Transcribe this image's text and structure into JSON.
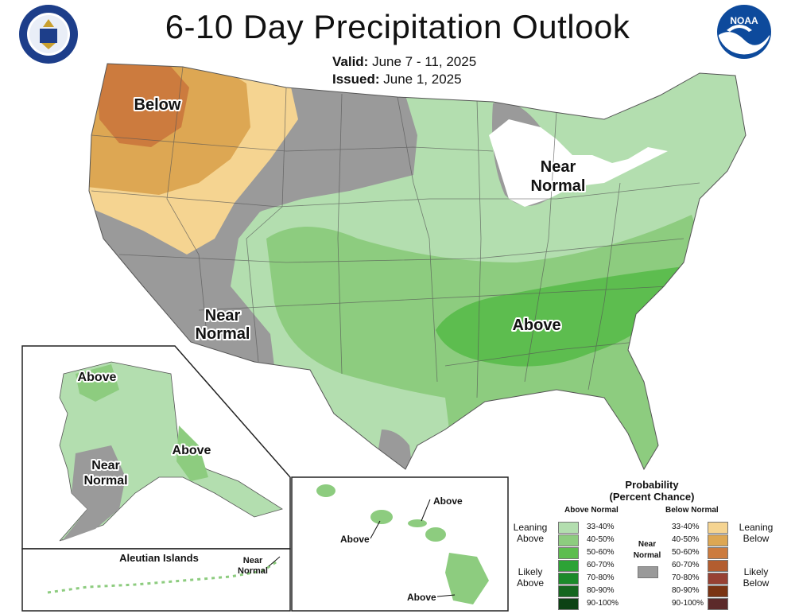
{
  "header": {
    "title": "6-10 Day Precipitation Outlook",
    "valid_label": "Valid:",
    "valid_dates": "June 7 - 11, 2025",
    "issued_label": "Issued:",
    "issued_date": "June 1, 2025"
  },
  "logos": {
    "left": "department-of-commerce-seal",
    "right": "noaa-logo",
    "right_text": "NOAA"
  },
  "regions": {
    "conus": {
      "below": "Below",
      "near_west_line1": "Near",
      "near_west_line2": "Normal",
      "near_michigan_line1": "Near",
      "near_michigan_line2": "Normal",
      "above_southeast": "Above"
    },
    "alaska": {
      "above_north": "Above",
      "above_south": "Above",
      "near_line1": "Near",
      "near_line2": "Normal"
    },
    "aleutian": {
      "title": "Aleutian Islands",
      "near_line1": "Near",
      "near_line2": "Normal"
    },
    "hawaii": {
      "above_1": "Above",
      "above_2": "Above",
      "above_3": "Above"
    }
  },
  "legend": {
    "title_line1": "Probability",
    "title_line2": "(Percent Chance)",
    "above_header": "Above Normal",
    "below_header": "Below Normal",
    "near_label_line1": "Near",
    "near_label_line2": "Normal",
    "leaning_above_line1": "Leaning",
    "leaning_above_line2": "Above",
    "likely_above_line1": "Likely",
    "likely_above_line2": "Above",
    "leaning_below_line1": "Leaning",
    "leaning_below_line2": "Below",
    "likely_below_line1": "Likely",
    "likely_below_line2": "Below",
    "above": [
      {
        "label": "33-40%",
        "color": "#b3deaf"
      },
      {
        "label": "40-50%",
        "color": "#8dcc7f"
      },
      {
        "label": "50-60%",
        "color": "#5dbd4f"
      },
      {
        "label": "60-70%",
        "color": "#2da336"
      },
      {
        "label": "70-80%",
        "color": "#1b8a2a"
      },
      {
        "label": "80-90%",
        "color": "#15661f"
      },
      {
        "label": "90-100%",
        "color": "#0c4214"
      }
    ],
    "below": [
      {
        "label": "33-40%",
        "color": "#f5d491"
      },
      {
        "label": "40-50%",
        "color": "#dda753"
      },
      {
        "label": "50-60%",
        "color": "#cc7b3e"
      },
      {
        "label": "60-70%",
        "color": "#b35d2f"
      },
      {
        "label": "70-80%",
        "color": "#974133"
      },
      {
        "label": "80-90%",
        "color": "#7a3413"
      },
      {
        "label": "90-100%",
        "color": "#5c2a2a"
      }
    ],
    "near_color": "#9a9a9a"
  }
}
